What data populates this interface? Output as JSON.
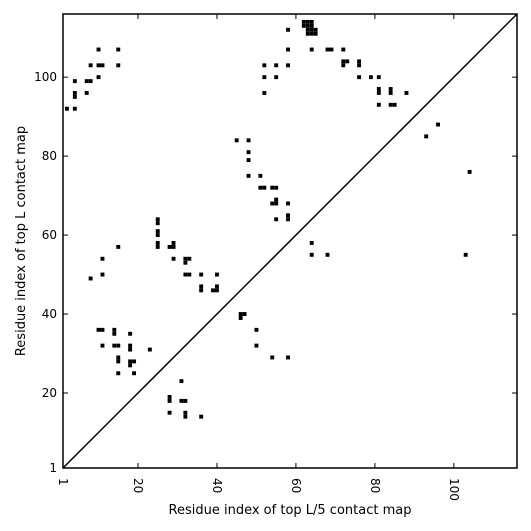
{
  "chart_data": {
    "type": "scatter",
    "marker": "square",
    "color": "#000000",
    "xlabel": "Residue index of top L/5 contact map",
    "ylabel": "Residue index of top L contact map",
    "xlim": [
      1,
      116
    ],
    "ylim": [
      1,
      116
    ],
    "xticks": [
      {
        "value": 1,
        "label": "1"
      },
      {
        "value": 20,
        "label": "20"
      },
      {
        "value": 40,
        "label": "40"
      },
      {
        "value": 60,
        "label": "60"
      },
      {
        "value": 80,
        "label": "80"
      },
      {
        "value": 100,
        "label": "100"
      }
    ],
    "yticks": [
      {
        "value": 1,
        "label": "1"
      },
      {
        "value": 20,
        "label": "20"
      },
      {
        "value": 40,
        "label": "40"
      },
      {
        "value": 60,
        "label": "60"
      },
      {
        "value": 80,
        "label": "80"
      },
      {
        "value": 100,
        "label": "100"
      }
    ],
    "x_tick_rotation": 90,
    "grid": false,
    "diagonal": {
      "from": [
        1,
        1
      ],
      "to": [
        116,
        116
      ]
    },
    "points": [
      [
        2,
        92
      ],
      [
        4,
        99
      ],
      [
        4,
        96
      ],
      [
        4,
        95
      ],
      [
        4,
        92
      ],
      [
        7,
        99
      ],
      [
        7,
        96
      ],
      [
        8,
        103
      ],
      [
        8,
        99
      ],
      [
        10,
        107
      ],
      [
        10,
        103
      ],
      [
        10,
        100
      ],
      [
        11,
        103
      ],
      [
        15,
        107
      ],
      [
        15,
        103
      ],
      [
        58,
        112
      ],
      [
        58,
        107
      ],
      [
        58,
        103
      ],
      [
        64,
        107
      ],
      [
        68,
        107
      ],
      [
        69,
        107
      ],
      [
        72,
        107
      ],
      [
        72,
        104
      ],
      [
        72,
        103
      ],
      [
        73,
        104
      ],
      [
        76,
        104
      ],
      [
        76,
        103
      ],
      [
        76,
        100
      ],
      [
        79,
        100
      ],
      [
        81,
        100
      ],
      [
        81,
        97
      ],
      [
        81,
        96
      ],
      [
        81,
        93
      ],
      [
        84,
        97
      ],
      [
        84,
        96
      ],
      [
        84,
        93
      ],
      [
        85,
        93
      ],
      [
        88,
        96
      ],
      [
        93,
        85
      ],
      [
        96,
        88
      ],
      [
        52,
        103
      ],
      [
        52,
        100
      ],
      [
        52,
        96
      ],
      [
        55,
        103
      ],
      [
        55,
        100
      ],
      [
        62,
        114
      ],
      [
        63,
        114
      ],
      [
        64,
        114
      ],
      [
        62,
        113
      ],
      [
        63,
        113
      ],
      [
        64,
        113
      ],
      [
        63,
        112
      ],
      [
        64,
        112
      ],
      [
        65,
        112
      ],
      [
        63,
        111
      ],
      [
        64,
        111
      ],
      [
        65,
        111
      ],
      [
        45,
        84
      ],
      [
        48,
        84
      ],
      [
        48,
        81
      ],
      [
        48,
        79
      ],
      [
        48,
        75
      ],
      [
        51,
        75
      ],
      [
        51,
        72
      ],
      [
        52,
        72
      ],
      [
        54,
        72
      ],
      [
        55,
        72
      ],
      [
        54,
        68
      ],
      [
        55,
        69
      ],
      [
        55,
        68
      ],
      [
        58,
        68
      ],
      [
        55,
        64
      ],
      [
        58,
        65
      ],
      [
        58,
        64
      ],
      [
        64,
        58
      ],
      [
        64,
        55
      ],
      [
        68,
        55
      ],
      [
        104,
        76
      ],
      [
        103,
        55
      ],
      [
        25,
        64
      ],
      [
        25,
        63
      ],
      [
        25,
        61
      ],
      [
        25,
        60
      ],
      [
        25,
        58
      ],
      [
        25,
        57
      ],
      [
        28,
        57
      ],
      [
        29,
        58
      ],
      [
        29,
        57
      ],
      [
        29,
        54
      ],
      [
        32,
        54
      ],
      [
        32,
        53
      ],
      [
        33,
        54
      ],
      [
        32,
        50
      ],
      [
        33,
        50
      ],
      [
        36,
        50
      ],
      [
        36,
        47
      ],
      [
        36,
        46
      ],
      [
        39,
        46
      ],
      [
        40,
        46
      ],
      [
        40,
        47
      ],
      [
        40,
        50
      ],
      [
        46,
        40
      ],
      [
        47,
        40
      ],
      [
        46,
        39
      ],
      [
        50,
        36
      ],
      [
        50,
        32
      ],
      [
        54,
        29
      ],
      [
        58,
        29
      ],
      [
        15,
        57
      ],
      [
        11,
        54
      ],
      [
        11,
        50
      ],
      [
        8,
        49
      ],
      [
        10,
        36
      ],
      [
        11,
        36
      ],
      [
        11,
        32
      ],
      [
        14,
        36
      ],
      [
        14,
        35
      ],
      [
        14,
        32
      ],
      [
        15,
        32
      ],
      [
        15,
        29
      ],
      [
        15,
        28
      ],
      [
        15,
        25
      ],
      [
        18,
        35
      ],
      [
        18,
        32
      ],
      [
        18,
        31
      ],
      [
        18,
        28
      ],
      [
        18,
        27
      ],
      [
        19,
        28
      ],
      [
        19,
        25
      ],
      [
        23,
        31
      ],
      [
        31,
        23
      ],
      [
        28,
        19
      ],
      [
        28,
        18
      ],
      [
        31,
        18
      ],
      [
        32,
        18
      ],
      [
        32,
        15
      ],
      [
        32,
        14
      ],
      [
        28,
        15
      ],
      [
        36,
        14
      ]
    ]
  }
}
